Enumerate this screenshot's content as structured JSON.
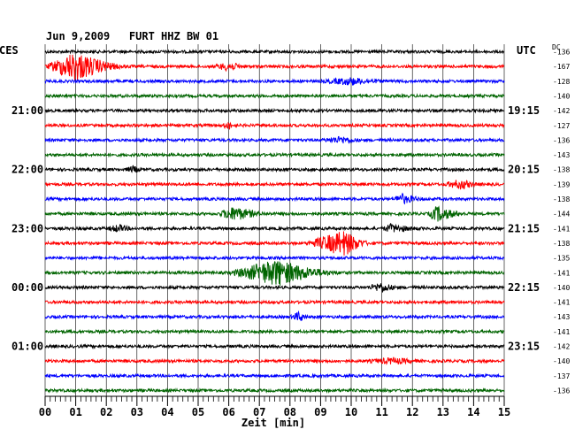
{
  "header": {
    "title": "Jun 9,2009   FURT HHZ BW 01",
    "left_tz": "CES",
    "right_tz": "UTC",
    "dc_label": "DC"
  },
  "chart_data": {
    "type": "line",
    "title": "Jun 9,2009   FURT HHZ BW 01",
    "xlabel": "Zeit [min]",
    "xlim": [
      0,
      15
    ],
    "x_ticks": [
      "00",
      "01",
      "02",
      "03",
      "04",
      "05",
      "06",
      "07",
      "08",
      "09",
      "10",
      "11",
      "12",
      "13",
      "14",
      "15"
    ],
    "left_time_labels": [
      "21:00",
      "22:00",
      "23:00",
      "00:00",
      "01:00"
    ],
    "right_time_labels": [
      "19:15",
      "20:15",
      "21:15",
      "22:15",
      "23:15"
    ],
    "dc_offsets": [
      "-136",
      "-167",
      "-128",
      "-140",
      "-142",
      "-127",
      "-136",
      "-143",
      "-138",
      "-139",
      "-138",
      "-144",
      "-141",
      "-138",
      "-135",
      "-141",
      "-140",
      "-141",
      "-143",
      "-141",
      "-142",
      "-140",
      "-137",
      "-136"
    ],
    "trace_colors": [
      "#000000",
      "#ff0000",
      "#0000ff",
      "#006400"
    ],
    "events": [
      {
        "trace": 1,
        "start_min": 0.0,
        "end_min": 3.0,
        "peak_min": 1.0,
        "amplitude": 1.0
      },
      {
        "trace": 1,
        "start_min": 5.5,
        "end_min": 6.8,
        "peak_min": 6.0,
        "amplitude": 0.25
      },
      {
        "trace": 2,
        "start_min": 9.0,
        "end_min": 11.5,
        "peak_min": 10.0,
        "amplitude": 0.22
      },
      {
        "trace": 5,
        "start_min": 5.8,
        "end_min": 6.2,
        "peak_min": 6.0,
        "amplitude": 0.25
      },
      {
        "trace": 6,
        "start_min": 9.0,
        "end_min": 10.5,
        "peak_min": 9.7,
        "amplitude": 0.2
      },
      {
        "trace": 8,
        "start_min": 2.6,
        "end_min": 3.2,
        "peak_min": 2.9,
        "amplitude": 0.2
      },
      {
        "trace": 9,
        "start_min": 13.0,
        "end_min": 14.3,
        "peak_min": 13.6,
        "amplitude": 0.3
      },
      {
        "trace": 10,
        "start_min": 11.4,
        "end_min": 12.6,
        "peak_min": 11.6,
        "amplitude": 0.35
      },
      {
        "trace": 11,
        "start_min": 5.6,
        "end_min": 7.5,
        "peak_min": 6.2,
        "amplitude": 0.45
      },
      {
        "trace": 11,
        "start_min": 12.5,
        "end_min": 14.0,
        "peak_min": 12.8,
        "amplitude": 0.5
      },
      {
        "trace": 12,
        "start_min": 2.0,
        "end_min": 3.0,
        "peak_min": 2.4,
        "amplitude": 0.22
      },
      {
        "trace": 12,
        "start_min": 11.0,
        "end_min": 12.5,
        "peak_min": 11.3,
        "amplitude": 0.25
      },
      {
        "trace": 13,
        "start_min": 8.5,
        "end_min": 10.8,
        "peak_min": 9.8,
        "amplitude": 0.85
      },
      {
        "trace": 15,
        "start_min": 6.0,
        "end_min": 10.0,
        "peak_min": 7.6,
        "amplitude": 0.9
      },
      {
        "trace": 16,
        "start_min": 10.5,
        "end_min": 11.7,
        "peak_min": 11.0,
        "amplitude": 0.3
      },
      {
        "trace": 18,
        "start_min": 8.0,
        "end_min": 8.7,
        "peak_min": 8.3,
        "amplitude": 0.3
      },
      {
        "trace": 21,
        "start_min": 10.5,
        "end_min": 12.5,
        "peak_min": 11.4,
        "amplitude": 0.18
      }
    ]
  }
}
